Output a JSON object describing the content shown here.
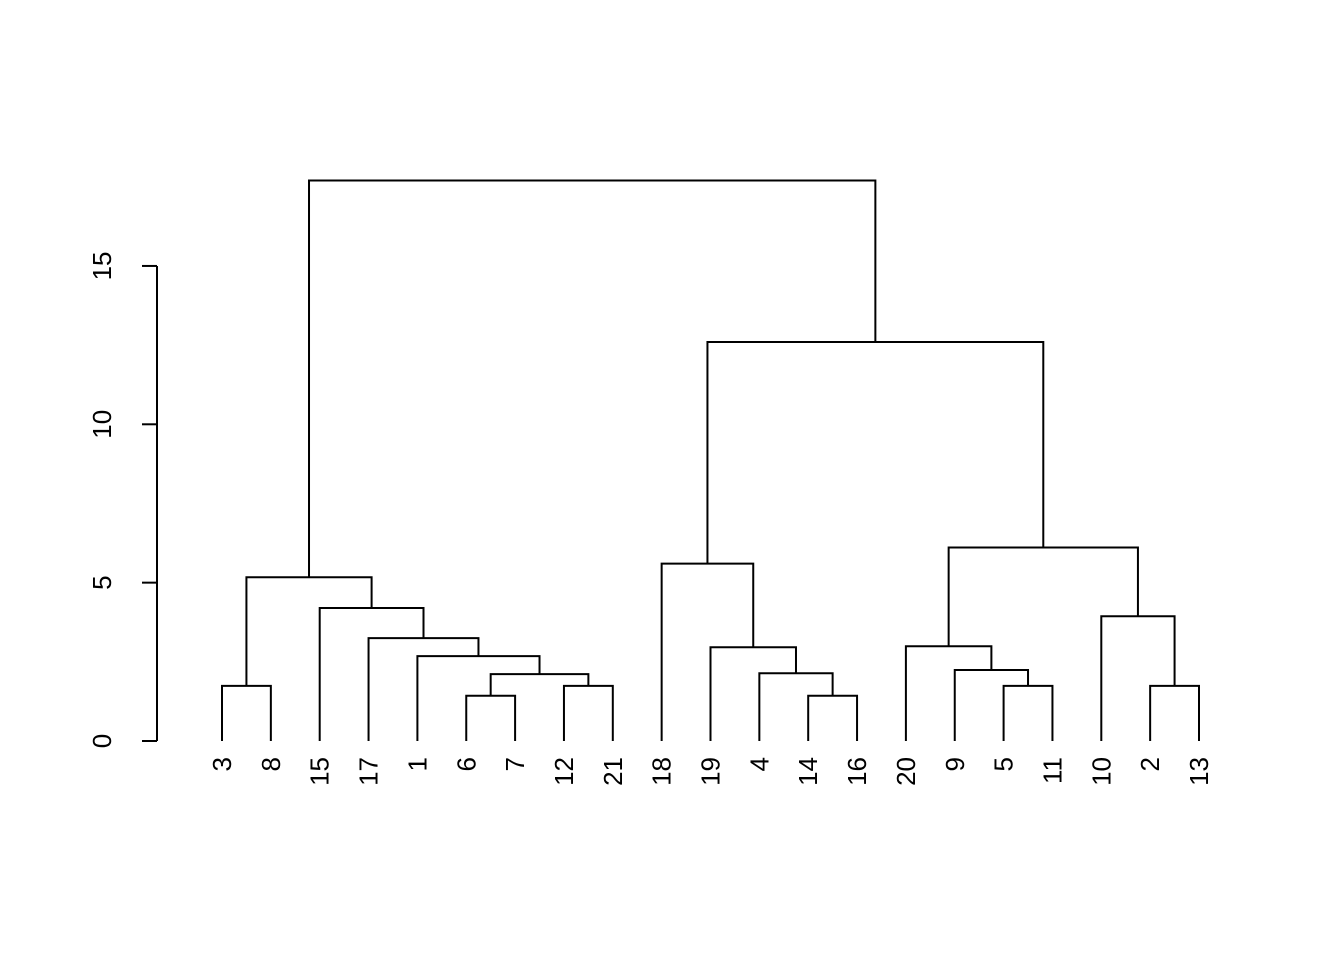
{
  "chart_data": {
    "type": "dendrogram",
    "title": "",
    "xlabel": "",
    "ylabel": "",
    "ylim": [
      0,
      15
    ],
    "y_ticks": [
      "0",
      "5",
      "10",
      "15"
    ],
    "leaves": [
      "3",
      "8",
      "15",
      "17",
      "1",
      "6",
      "7",
      "12",
      "21",
      "18",
      "19",
      "4",
      "14",
      "16",
      "20",
      "9",
      "5",
      "11",
      "10",
      "2",
      "13"
    ],
    "merges": [
      {
        "id": "m1",
        "left": "6",
        "right": "7",
        "height": 1.43
      },
      {
        "id": "m2",
        "left": "14",
        "right": "16",
        "height": 1.43
      },
      {
        "id": "m3",
        "left": "3",
        "right": "8",
        "height": 1.74
      },
      {
        "id": "m4",
        "left": "12",
        "right": "21",
        "height": 1.74
      },
      {
        "id": "m5",
        "left": "5",
        "right": "11",
        "height": 1.74
      },
      {
        "id": "m6",
        "left": "2",
        "right": "13",
        "height": 1.74
      },
      {
        "id": "m7",
        "left": "m1",
        "right": "m4",
        "height": 2.11
      },
      {
        "id": "m8",
        "left": "4",
        "right": "m2",
        "height": 2.14
      },
      {
        "id": "m9",
        "left": "9",
        "right": "m5",
        "height": 2.24
      },
      {
        "id": "m10",
        "left": "1",
        "right": "m7",
        "height": 2.68
      },
      {
        "id": "m11",
        "left": "19",
        "right": "m8",
        "height": 2.96
      },
      {
        "id": "m12",
        "left": "20",
        "right": "m9",
        "height": 2.99
      },
      {
        "id": "m13",
        "left": "17",
        "right": "m10",
        "height": 3.25
      },
      {
        "id": "m14",
        "left": "10",
        "right": "m6",
        "height": 3.94
      },
      {
        "id": "m15",
        "left": "15",
        "right": "m13",
        "height": 4.2
      },
      {
        "id": "m16",
        "left": "m3",
        "right": "m15",
        "height": 5.17
      },
      {
        "id": "m17",
        "left": "18",
        "right": "m11",
        "height": 5.6
      },
      {
        "id": "m18",
        "left": "m12",
        "right": "m14",
        "height": 6.11
      },
      {
        "id": "m19",
        "left": "m17",
        "right": "m18",
        "height": 12.6
      },
      {
        "id": "m20",
        "left": "m16",
        "right": "m19",
        "height": 17.7
      }
    ]
  }
}
